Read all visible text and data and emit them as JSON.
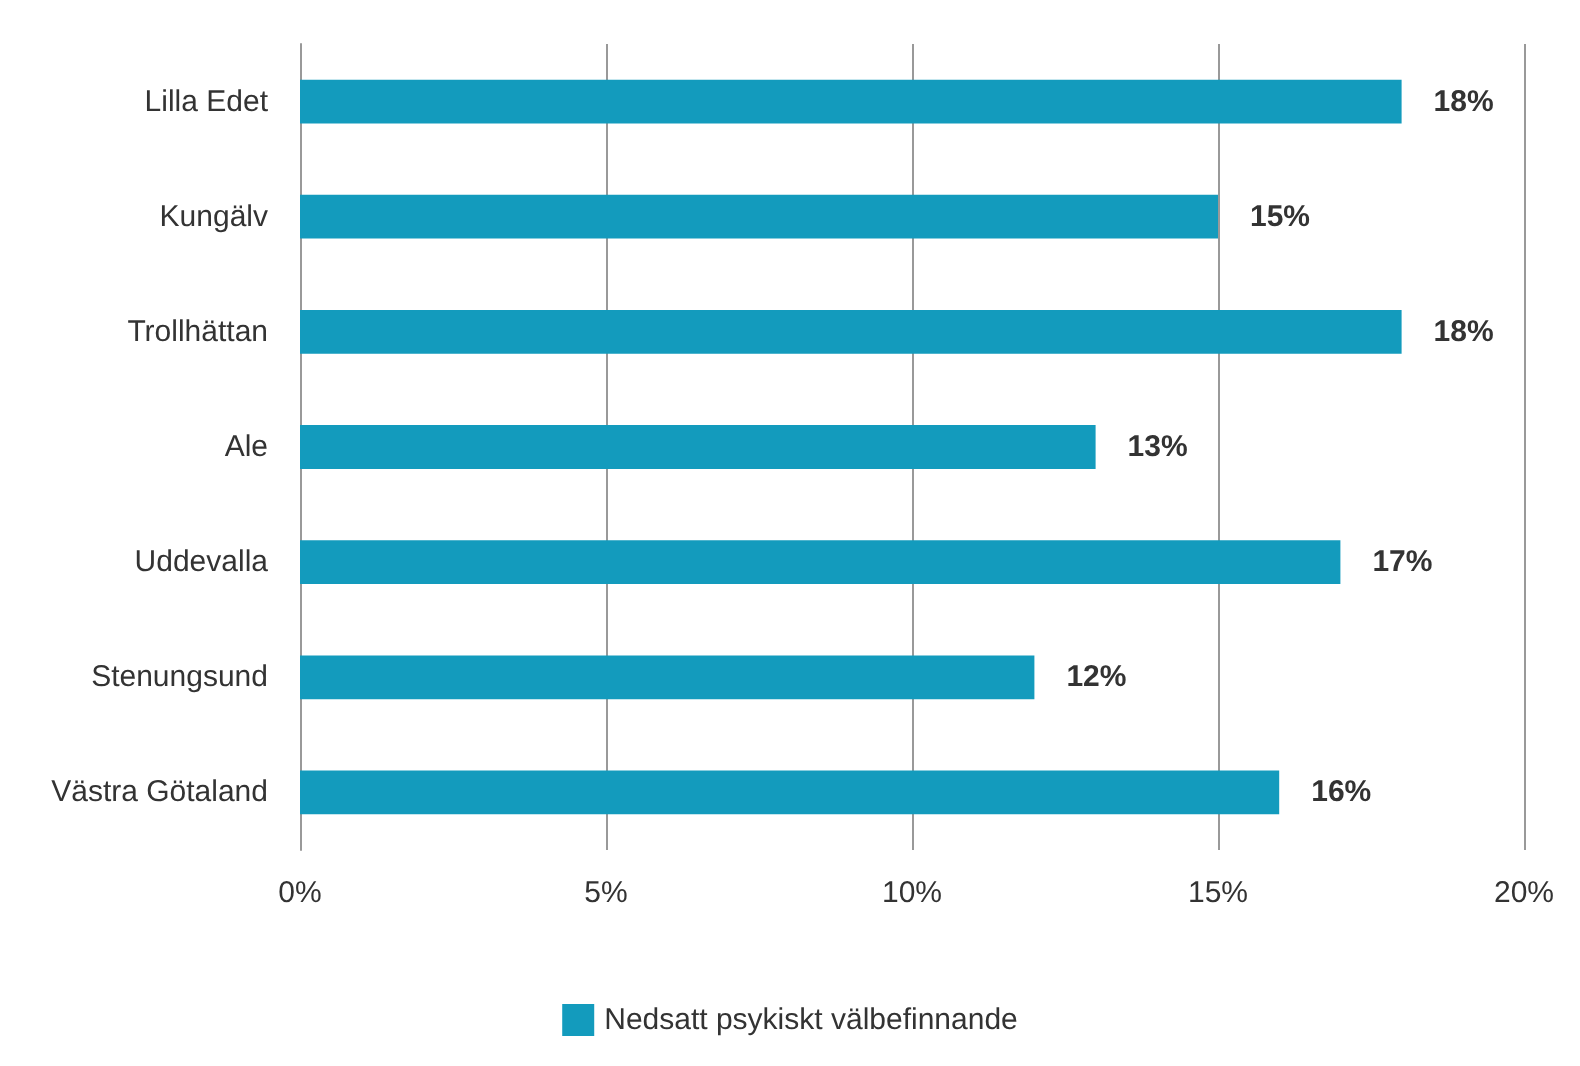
{
  "chart_data": {
    "type": "bar",
    "orientation": "horizontal",
    "categories": [
      "Lilla Edet",
      "Kungälv",
      "Trollhättan",
      "Ale",
      "Uddevalla",
      "Stenungsund",
      "Västra Götaland"
    ],
    "series": [
      {
        "name": "Nedsatt psykiskt välbefinnande",
        "color": "#139bbd",
        "values": [
          18,
          15,
          18,
          13,
          17,
          12,
          16
        ],
        "value_labels": [
          "18%",
          "15%",
          "18%",
          "13%",
          "17%",
          "12%",
          "16%"
        ]
      }
    ],
    "xlim": [
      0,
      20
    ],
    "xticks": [
      {
        "value": 0,
        "label": "0%"
      },
      {
        "value": 5,
        "label": "5%"
      },
      {
        "value": 10,
        "label": "10%"
      },
      {
        "value": 15,
        "label": "15%"
      },
      {
        "value": 20,
        "label": "20%"
      }
    ],
    "grid": "x",
    "legend": "bottom"
  }
}
